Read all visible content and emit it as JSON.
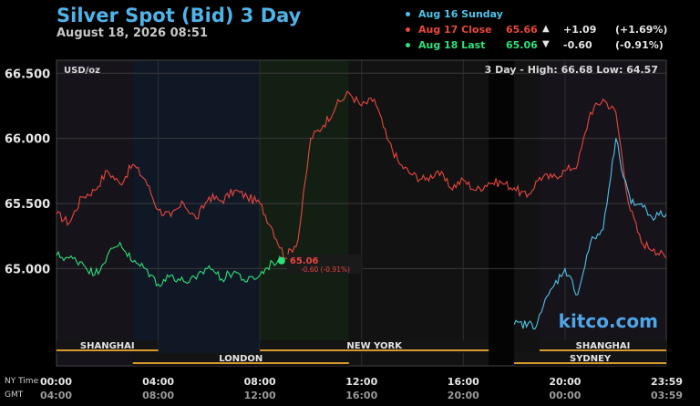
{
  "header": {
    "title": "Silver Spot (Bid) 3 Day",
    "timestamp": "August 18, 2026 08:51"
  },
  "legend": [
    {
      "label": "Aug 16 Sunday",
      "value": "",
      "arrow": "",
      "change": "",
      "pct": "",
      "color": "#4fc3e8"
    },
    {
      "label": "Aug 17 Close",
      "value": "65.66",
      "arrow": "▲",
      "change": "+1.09",
      "pct": "(+1.69%)",
      "color": "#e8473e"
    },
    {
      "label": "Aug 18 Last",
      "value": "65.06",
      "arrow": "▼",
      "change": "-0.60",
      "pct": "(-0.91%)",
      "color": "#2ee07a"
    }
  ],
  "chart_data": {
    "type": "line",
    "unit_label": "USD/oz",
    "summary": "3 Day - High: 66.68  Low: 64.57",
    "ylim": [
      64.47,
      66.6
    ],
    "yticks": [
      "66.500",
      "66.000",
      "65.500",
      "65.000"
    ],
    "ytick_values": [
      66.5,
      66.0,
      65.5,
      65.0
    ],
    "xlim": [
      0,
      23.983
    ],
    "xticks_ny": [
      "00:00",
      "04:00",
      "08:00",
      "12:00",
      "16:00",
      "20:00",
      "23:59"
    ],
    "xticks_gmt": [
      "04:00",
      "08:00",
      "12:00",
      "16:00",
      "20:00",
      "00:00",
      "03:59"
    ],
    "xtick_values": [
      0,
      4,
      8,
      12,
      16,
      20,
      23.983
    ],
    "axis_row_labels": [
      "NY Time",
      "GMT"
    ],
    "sessions": [
      {
        "name": "SHANGHAI",
        "start": 0,
        "end": 4,
        "row": 1
      },
      {
        "name": "NEW YORK",
        "start": 8,
        "end": 17,
        "row": 1
      },
      {
        "name": "SHANGHAI",
        "start": 19.0,
        "end": 23.983,
        "row": 1
      },
      {
        "name": "LONDON",
        "start": 3,
        "end": 11.5,
        "row": 2
      },
      {
        "name": "SYDNEY",
        "start": 18.0,
        "end": 23.983,
        "row": 2
      }
    ],
    "watermark": "kitco.com",
    "last_label": {
      "price": "65.06",
      "change": "-0.60 (-0.91%)",
      "x": 8.85,
      "y": 65.06
    },
    "series": [
      {
        "name": "Aug 17 Close",
        "color": "#e8473e",
        "x": [
          0,
          0.5,
          1,
          1.5,
          2,
          2.5,
          3,
          3.5,
          4,
          4.5,
          5,
          5.5,
          6,
          6.5,
          7,
          7.5,
          8,
          8.5,
          9,
          9.5,
          10,
          10.5,
          11,
          11.5,
          12,
          12.5,
          13,
          13.5,
          14,
          14.5,
          15,
          15.5,
          16,
          16.5,
          17,
          17.5,
          18,
          18.5,
          19,
          19.5,
          20,
          20.5,
          21,
          21.5,
          22,
          22.5,
          23,
          23.5,
          23.983
        ],
        "values": [
          65.42,
          65.35,
          65.55,
          65.6,
          65.75,
          65.65,
          65.8,
          65.68,
          65.45,
          65.4,
          65.5,
          65.38,
          65.55,
          65.52,
          65.6,
          65.55,
          65.5,
          65.3,
          65.08,
          65.22,
          66.0,
          66.1,
          66.25,
          66.35,
          66.25,
          66.3,
          66.0,
          65.8,
          65.72,
          65.68,
          65.75,
          65.62,
          65.68,
          65.6,
          65.66,
          65.66,
          65.62,
          65.55,
          65.7,
          65.7,
          65.75,
          65.8,
          66.2,
          66.3,
          66.2,
          65.5,
          65.2,
          65.15,
          65.08
        ]
      },
      {
        "name": "Aug 18 Last",
        "color": "#2ee07a",
        "x": [
          0,
          0.5,
          1,
          1.5,
          2,
          2.5,
          3,
          3.5,
          4,
          4.5,
          5,
          5.5,
          6,
          6.5,
          7,
          7.5,
          8,
          8.5,
          8.85
        ],
        "values": [
          65.1,
          65.08,
          65.05,
          64.95,
          65.1,
          65.2,
          65.05,
          65.0,
          64.88,
          64.95,
          64.9,
          64.92,
          65.02,
          64.92,
          64.98,
          64.9,
          64.95,
          65.05,
          65.06
        ]
      },
      {
        "name": "Aug 16 Sunday",
        "color": "#4fc3e8",
        "x": [
          18.0,
          18.9,
          19.0,
          19.5,
          20.0,
          20.5,
          21.0,
          21.5,
          21.8,
          22.0,
          22.3,
          22.6,
          23.0,
          23.4,
          23.983
        ],
        "values": [
          64.57,
          64.57,
          64.65,
          64.85,
          65.0,
          64.8,
          65.2,
          65.3,
          65.7,
          66.0,
          65.7,
          65.5,
          65.5,
          65.4,
          65.42
        ]
      }
    ]
  }
}
